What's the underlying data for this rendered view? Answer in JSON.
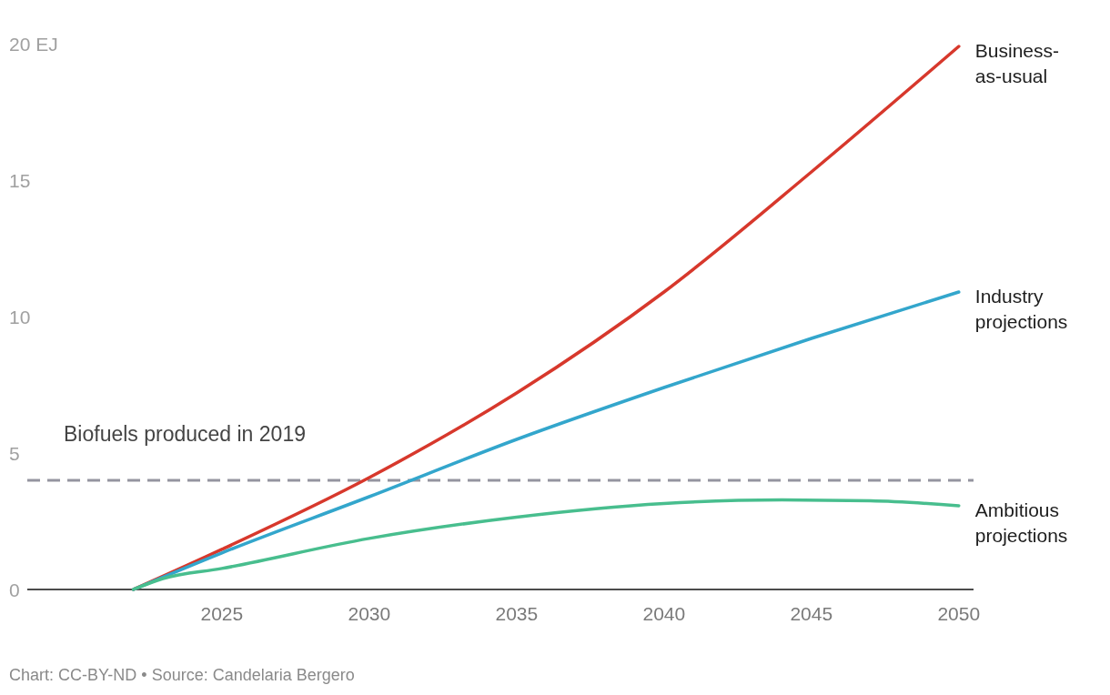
{
  "chart_data": {
    "type": "line",
    "xlim": [
      2018.4,
      2050.5
    ],
    "ylim": [
      0,
      20
    ],
    "xticks": [
      2025,
      2030,
      2035,
      2040,
      2045,
      2050
    ],
    "yticks": [
      0,
      5,
      10,
      15,
      {
        "value": 20,
        "label": "20 EJ"
      }
    ],
    "series": [
      {
        "name": "Business-as-usual",
        "color": "#d7382c",
        "x": [
          2022,
          2025,
          2030,
          2035,
          2040,
          2045,
          2050
        ],
        "values": [
          0,
          1.47,
          4.1,
          7.2,
          10.9,
          15.3,
          19.9
        ]
      },
      {
        "name": "Industry projections",
        "color": "#33a6cc",
        "x": [
          2022,
          2025,
          2030,
          2035,
          2040,
          2045,
          2050
        ],
        "values": [
          0,
          1.34,
          3.4,
          5.5,
          7.4,
          9.2,
          10.9
        ]
      },
      {
        "name": "Ambitious projections",
        "color": "#48be8e",
        "x": [
          2022,
          2023,
          2025,
          2030,
          2035,
          2040,
          2044,
          2047,
          2050
        ],
        "values": [
          0,
          0.4,
          0.77,
          1.87,
          2.65,
          3.15,
          3.28,
          3.25,
          3.07
        ]
      }
    ],
    "ref_lines": [
      {
        "axis": "y",
        "value": 4,
        "label": "Biofuels produced in 2019",
        "color": "#9595a0",
        "line_style": "dashed"
      }
    ],
    "annotations": [
      "Chart: CC-BY-ND • Source: Candelaria Bergero"
    ]
  }
}
